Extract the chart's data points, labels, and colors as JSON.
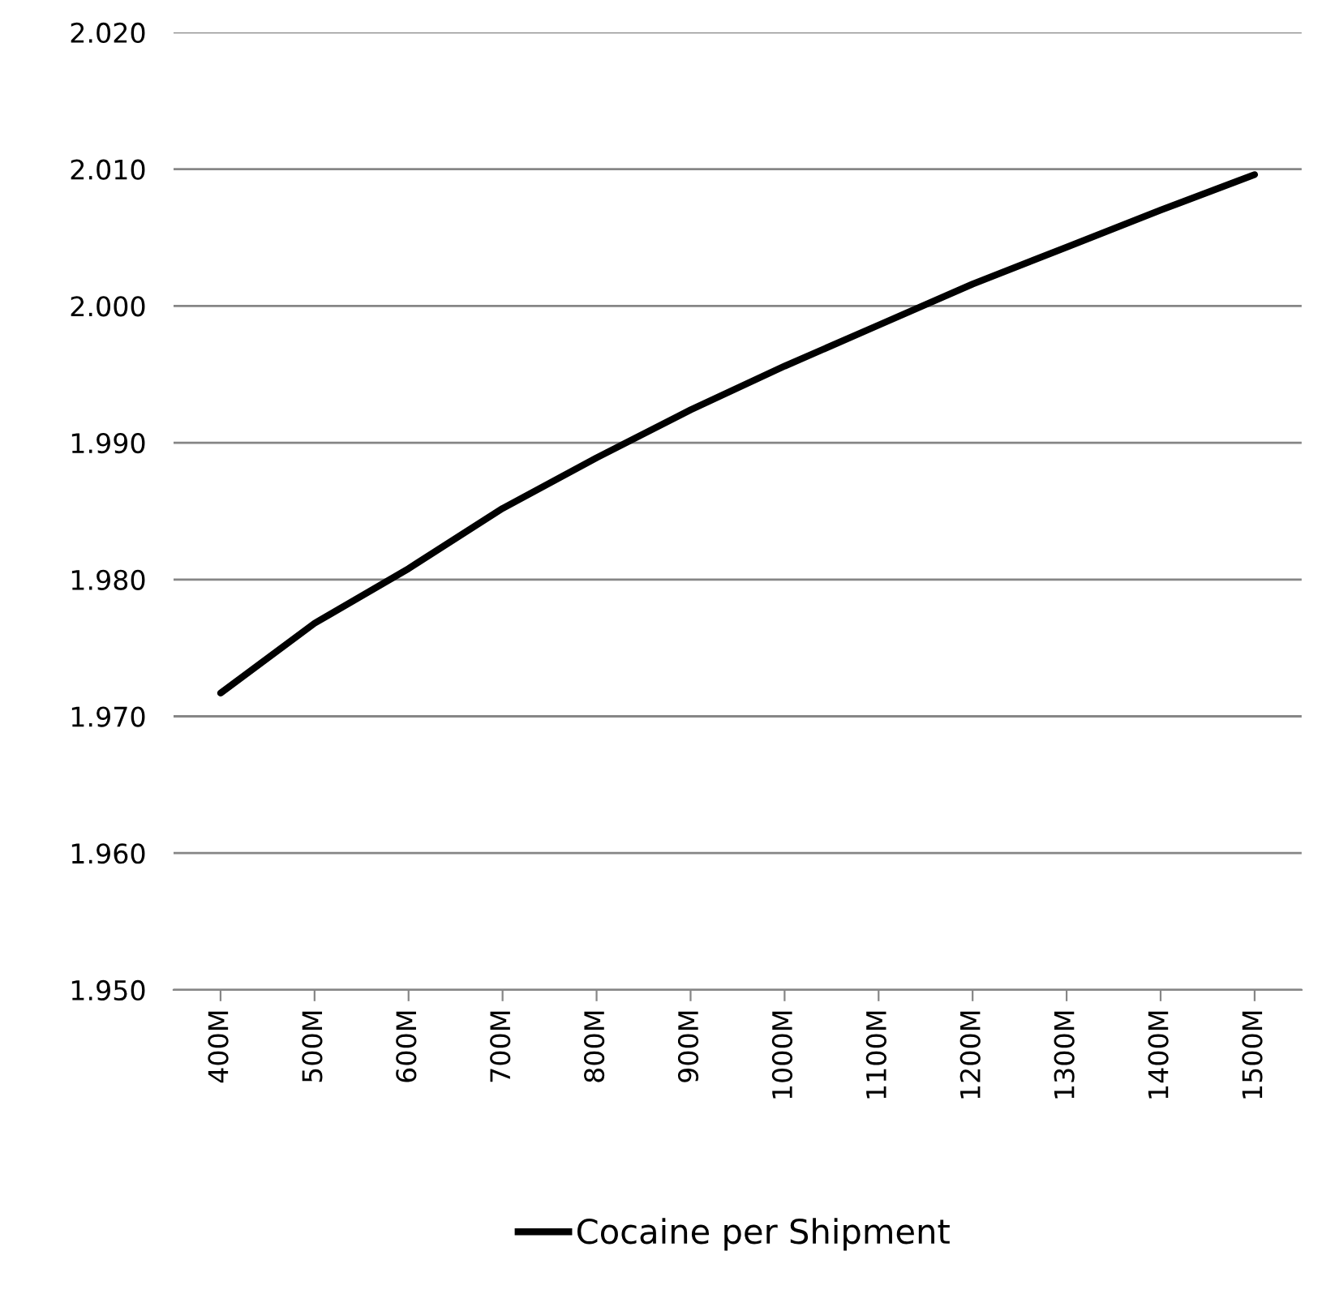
{
  "chart_data": {
    "type": "line",
    "categories": [
      "400M",
      "500M",
      "600M",
      "700M",
      "800M",
      "900M",
      "1000M",
      "1100M",
      "1200M",
      "1300M",
      "1400M",
      "1500M"
    ],
    "series": [
      {
        "name": "Cocaine per Shipment",
        "color": "#000000",
        "values": [
          1.9717,
          1.9768,
          1.9808,
          1.9852,
          1.9889,
          1.9924,
          1.9956,
          1.9986,
          2.0016,
          2.0043,
          2.007,
          2.0096
        ]
      }
    ],
    "ylim": [
      1.95,
      2.02
    ],
    "yticks": [
      {
        "value": 1.95,
        "label": "1.950"
      },
      {
        "value": 1.96,
        "label": "1.960"
      },
      {
        "value": 1.97,
        "label": "1.970"
      },
      {
        "value": 1.98,
        "label": "1.980"
      },
      {
        "value": 1.99,
        "label": "1.990"
      },
      {
        "value": 2.0,
        "label": "2.000"
      },
      {
        "value": 2.01,
        "label": "2.010"
      },
      {
        "value": 2.02,
        "label": "2.020"
      }
    ],
    "grid": "y",
    "legend": "bottom",
    "marker": "none",
    "line_style": "solid"
  }
}
